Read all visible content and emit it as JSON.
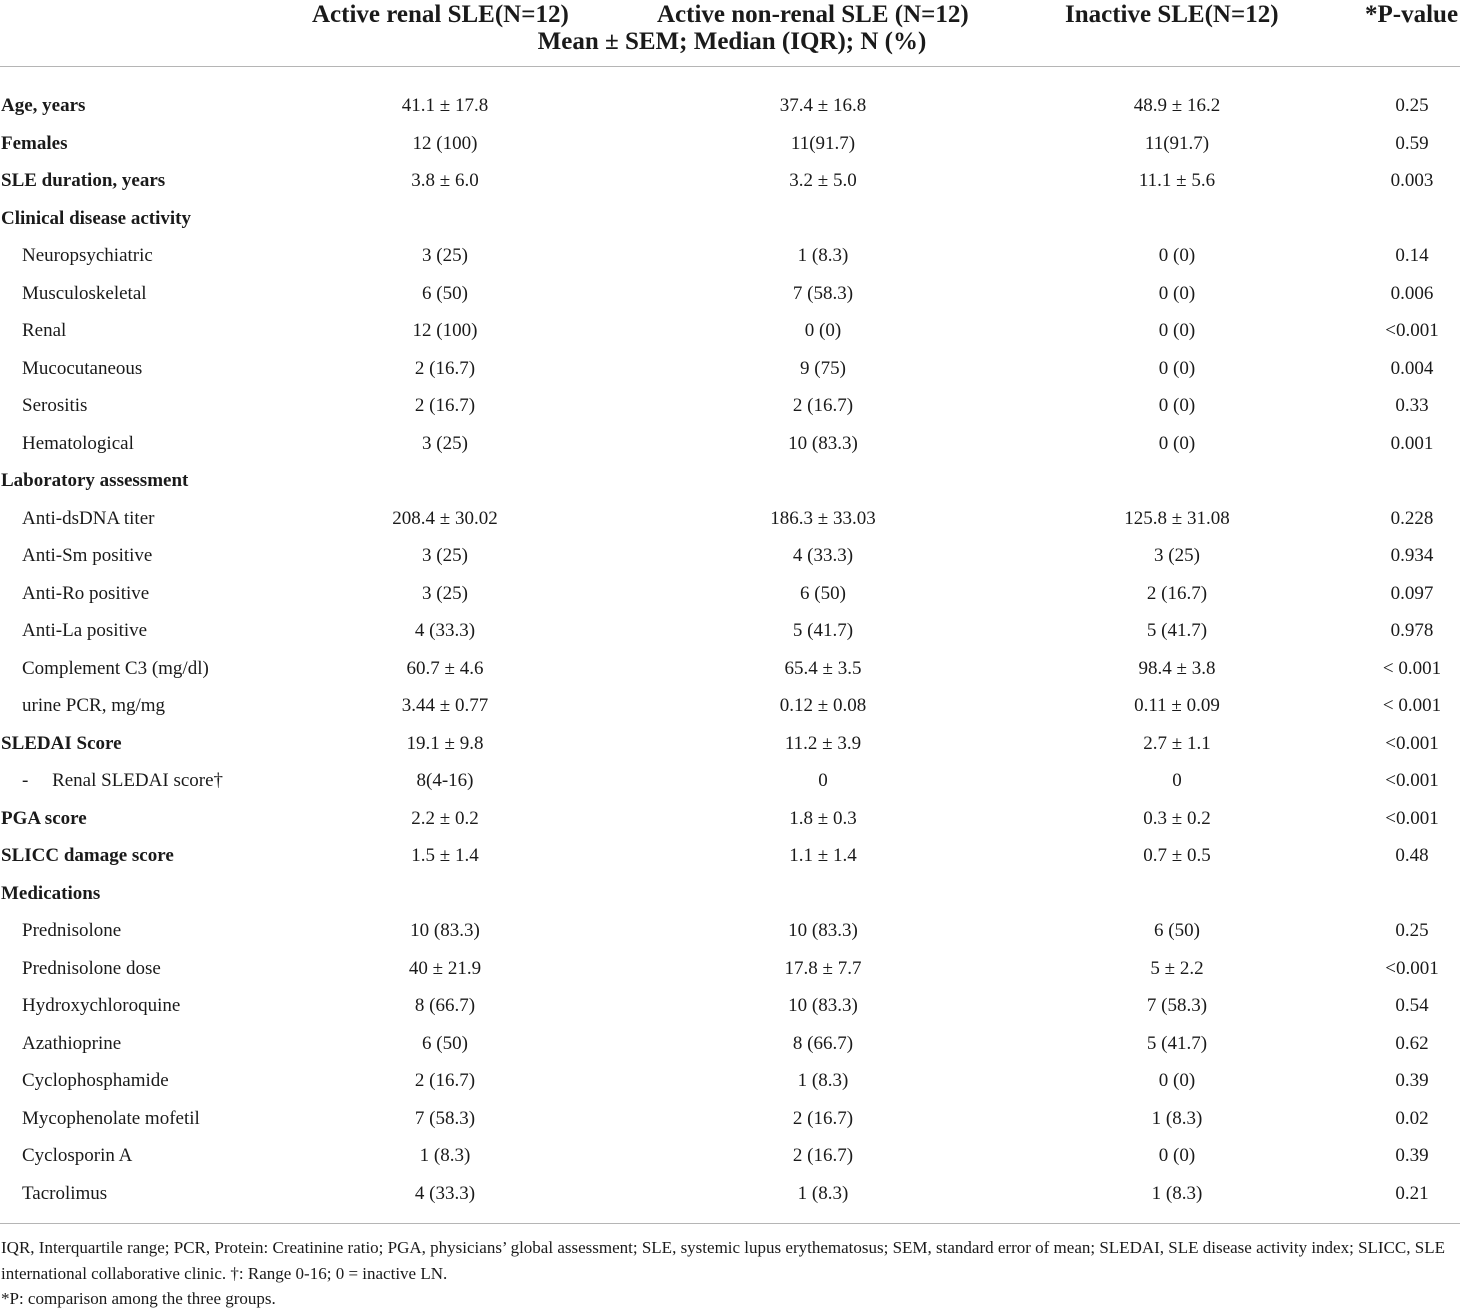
{
  "header": {
    "col1": "Active renal SLE(N=12)",
    "col2": "Active non-renal SLE (N=12)",
    "col3": "Inactive SLE(N=12)",
    "col4": "*P-value",
    "subheader": "Mean ± SEM; Median (IQR); N (%)"
  },
  "rows": [
    {
      "type": "main",
      "label": "Age, years",
      "c1": "41.1 ± 17.8",
      "c2": "37.4 ± 16.8",
      "c3": "48.9 ± 16.2",
      "c4": "0.25"
    },
    {
      "type": "main",
      "label": "Females",
      "c1": "12 (100)",
      "c2": "11(91.7)",
      "c3": "11(91.7)",
      "c4": "0.59"
    },
    {
      "type": "main",
      "label": "SLE duration, years",
      "c1": "3.8 ± 6.0",
      "c2": "3.2 ± 5.0",
      "c3": "11.1 ± 5.6",
      "c4": "0.003"
    },
    {
      "type": "section",
      "label": "Clinical disease activity",
      "c1": "",
      "c2": "",
      "c3": "",
      "c4": ""
    },
    {
      "type": "sub",
      "label": "Neuropsychiatric",
      "c1": "3 (25)",
      "c2": "1 (8.3)",
      "c3": "0 (0)",
      "c4": "0.14"
    },
    {
      "type": "sub",
      "label": "Musculoskeletal",
      "c1": "6 (50)",
      "c2": "7 (58.3)",
      "c3": "0 (0)",
      "c4": "0.006"
    },
    {
      "type": "sub",
      "label": "Renal",
      "c1": "12 (100)",
      "c2": "0 (0)",
      "c3": "0 (0)",
      "c4": "<0.001"
    },
    {
      "type": "sub",
      "label": "Mucocutaneous",
      "c1": "2 (16.7)",
      "c2": "9 (75)",
      "c3": "0 (0)",
      "c4": "0.004"
    },
    {
      "type": "sub",
      "label": "Serositis",
      "c1": "2 (16.7)",
      "c2": "2 (16.7)",
      "c3": "0 (0)",
      "c4": "0.33"
    },
    {
      "type": "sub",
      "label": "Hematological",
      "c1": "3 (25)",
      "c2": "10 (83.3)",
      "c3": "0 (0)",
      "c4": "0.001"
    },
    {
      "type": "section",
      "label": "Laboratory assessment",
      "c1": "",
      "c2": "",
      "c3": "",
      "c4": ""
    },
    {
      "type": "sub",
      "label": "Anti-dsDNA titer",
      "c1": "208.4 ± 30.02",
      "c2": "186.3 ± 33.03",
      "c3": "125.8 ± 31.08",
      "c4": "0.228"
    },
    {
      "type": "sub",
      "label": "Anti-Sm positive",
      "c1": "3 (25)",
      "c2": "4 (33.3)",
      "c3": "3 (25)",
      "c4": "0.934"
    },
    {
      "type": "sub",
      "label": "Anti-Ro positive",
      "c1": "3 (25)",
      "c2": "6 (50)",
      "c3": "2 (16.7)",
      "c4": "0.097"
    },
    {
      "type": "sub",
      "label": "Anti-La positive",
      "c1": "4 (33.3)",
      "c2": "5 (41.7)",
      "c3": "5 (41.7)",
      "c4": "0.978"
    },
    {
      "type": "sub",
      "label": "Complement C3 (mg/dl)",
      "c1": "60.7 ± 4.6",
      "c2": "65.4 ± 3.5",
      "c3": "98.4 ± 3.8",
      "c4": "< 0.001"
    },
    {
      "type": "sub",
      "label": "urine PCR, mg/mg",
      "c1": "3.44 ± 0.77",
      "c2": "0.12 ± 0.08",
      "c3": "0.11 ± 0.09",
      "c4": "< 0.001"
    },
    {
      "type": "main",
      "label": "SLEDAI Score",
      "c1": "19.1 ± 9.8",
      "c2": "11.2 ± 3.9",
      "c3": "2.7 ± 1.1",
      "c4": "<0.001"
    },
    {
      "type": "subsub",
      "label": "-     Renal SLEDAI score†",
      "c1": "8(4-16)",
      "c2": "0",
      "c3": "0",
      "c4": "<0.001"
    },
    {
      "type": "main",
      "label": "PGA score",
      "c1": "2.2 ± 0.2",
      "c2": "1.8 ± 0.3",
      "c3": "0.3 ± 0.2",
      "c4": "<0.001"
    },
    {
      "type": "main",
      "label": "SLICC damage score",
      "c1": "1.5 ± 1.4",
      "c2": "1.1 ± 1.4",
      "c3": "0.7 ± 0.5",
      "c4": "0.48"
    },
    {
      "type": "section",
      "label": "Medications",
      "c1": "",
      "c2": "",
      "c3": "",
      "c4": ""
    },
    {
      "type": "sub",
      "label": "Prednisolone",
      "c1": "10 (83.3)",
      "c2": "10 (83.3)",
      "c3": "6 (50)",
      "c4": "0.25"
    },
    {
      "type": "sub",
      "label": "Prednisolone dose",
      "c1": "40 ± 21.9",
      "c2": "17.8 ± 7.7",
      "c3": "5 ± 2.2",
      "c4": "<0.001"
    },
    {
      "type": "sub",
      "label": "Hydroxychloroquine",
      "c1": "8 (66.7)",
      "c2": "10 (83.3)",
      "c3": "7 (58.3)",
      "c4": "0.54"
    },
    {
      "type": "sub",
      "label": "Azathioprine",
      "c1": "6 (50)",
      "c2": "8 (66.7)",
      "c3": "5 (41.7)",
      "c4": "0.62"
    },
    {
      "type": "sub",
      "label": "Cyclophosphamide",
      "c1": "2 (16.7)",
      "c2": "1 (8.3)",
      "c3": "0 (0)",
      "c4": "0.39"
    },
    {
      "type": "sub",
      "label": "Mycophenolate mofetil",
      "c1": "7 (58.3)",
      "c2": "2 (16.7)",
      "c3": "1 (8.3)",
      "c4": "0.02"
    },
    {
      "type": "sub",
      "label": "Cyclosporin A",
      "c1": "1 (8.3)",
      "c2": "2 (16.7)",
      "c3": "0 (0)",
      "c4": "0.39"
    },
    {
      "type": "sub",
      "label": "Tacrolimus",
      "c1": "4 (33.3)",
      "c2": "1 (8.3)",
      "c3": "1 (8.3)",
      "c4": "0.21"
    }
  ],
  "footnotes": {
    "abbreviations": "IQR, Interquartile range; PCR, Protein: Creatinine ratio; PGA, physicians’ global assessment; SLE, systemic lupus erythematosus; SEM, standard error of mean; SLEDAI, SLE disease activity index; SLICC, SLE international collaborative clinic. †: Range 0-16; 0 = inactive LN.",
    "pvalue": "*P: comparison among the three groups."
  }
}
